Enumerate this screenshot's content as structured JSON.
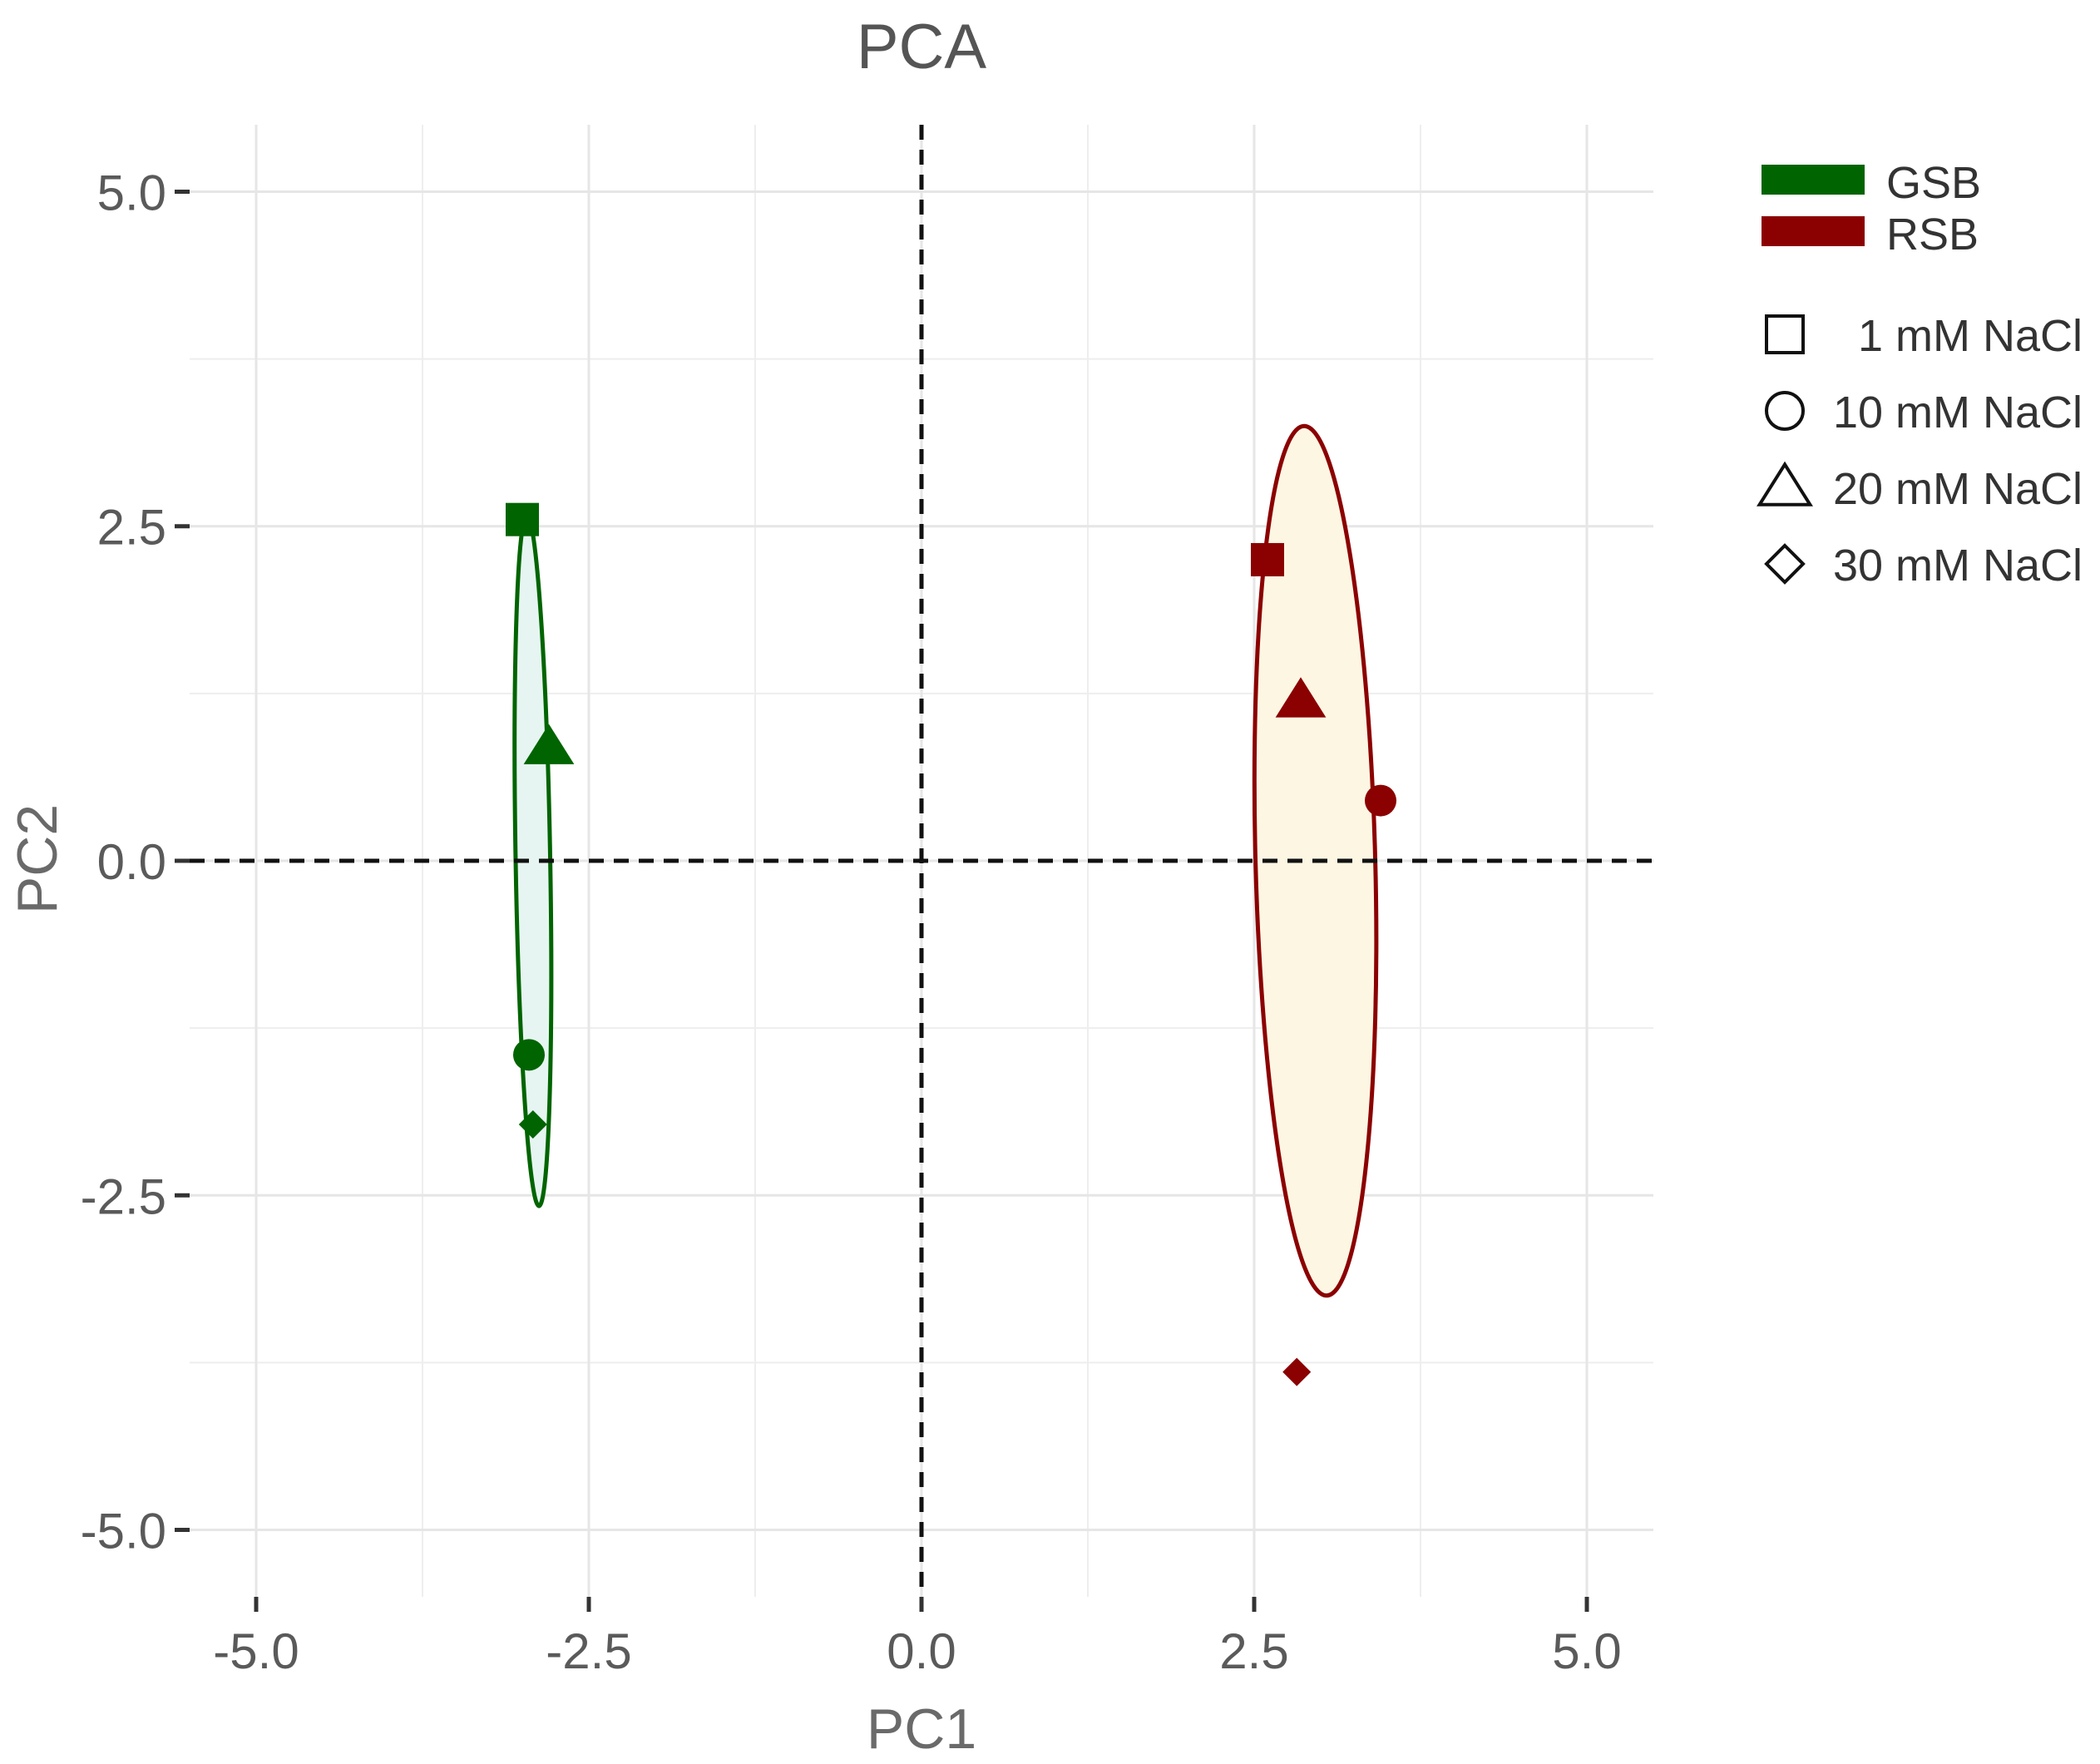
{
  "chart_data": {
    "type": "scatter",
    "title": "PCA",
    "xlabel": "PC1",
    "ylabel": "PC2",
    "xlim": [
      -5.5,
      5.5
    ],
    "ylim": [
      -5.5,
      5.5
    ],
    "xticks": [
      -5.0,
      -2.5,
      0.0,
      2.5,
      5.0
    ],
    "yticks": [
      -5.0,
      -2.5,
      0.0,
      2.5,
      5.0
    ],
    "xtick_labels": [
      "-5.0",
      "-2.5",
      "0.0",
      "2.5",
      "5.0"
    ],
    "ytick_labels": [
      "-5.0",
      "-2.5",
      "0.0",
      "2.5",
      "5.0"
    ],
    "grid": true,
    "reference_lines": {
      "x": 0,
      "y": 0,
      "style": "dashed"
    },
    "legend_position": "right",
    "series": [
      {
        "name": "GSB",
        "color": "#006400",
        "ellipse_fill": "#e6f5f1",
        "points": [
          {
            "x": -3.0,
            "y": 2.55,
            "condition": "1 mM NaCl",
            "shape": "square"
          },
          {
            "x": -2.95,
            "y": -1.45,
            "condition": "10 mM NaCl",
            "shape": "circle"
          },
          {
            "x": -2.8,
            "y": 0.85,
            "condition": "20 mM NaCl",
            "shape": "triangle"
          },
          {
            "x": -2.92,
            "y": -1.97,
            "condition": "30 mM NaCl",
            "shape": "diamond"
          }
        ],
        "ellipse": {
          "cx": -2.92,
          "cy": 0.0,
          "rx": 0.13,
          "ry": 2.58,
          "tilt_deg": 1
        }
      },
      {
        "name": "RSB",
        "color": "#8b0000",
        "ellipse_fill": "#fdf6e3",
        "points": [
          {
            "x": 2.6,
            "y": 2.25,
            "condition": "1 mM NaCl",
            "shape": "square"
          },
          {
            "x": 3.45,
            "y": 0.45,
            "condition": "10 mM NaCl",
            "shape": "circle"
          },
          {
            "x": 2.85,
            "y": 1.2,
            "condition": "20 mM NaCl",
            "shape": "triangle"
          },
          {
            "x": 2.82,
            "y": -3.82,
            "condition": "30 mM NaCl",
            "shape": "diamond"
          }
        ],
        "ellipse": {
          "cx": 2.96,
          "cy": 0.0,
          "rx": 0.45,
          "ry": 3.25,
          "tilt_deg": 1.5
        }
      }
    ],
    "legend": {
      "groups": [
        {
          "label": "GSB",
          "color": "#006400"
        },
        {
          "label": "RSB",
          "color": "#8b0000"
        }
      ],
      "shapes": [
        {
          "label": "1 mM NaCl",
          "shape": "square"
        },
        {
          "label": "10 mM NaCl",
          "shape": "circle"
        },
        {
          "label": "20 mM NaCl",
          "shape": "triangle"
        },
        {
          "label": "30 mM NaCl",
          "shape": "diamond"
        }
      ]
    }
  }
}
